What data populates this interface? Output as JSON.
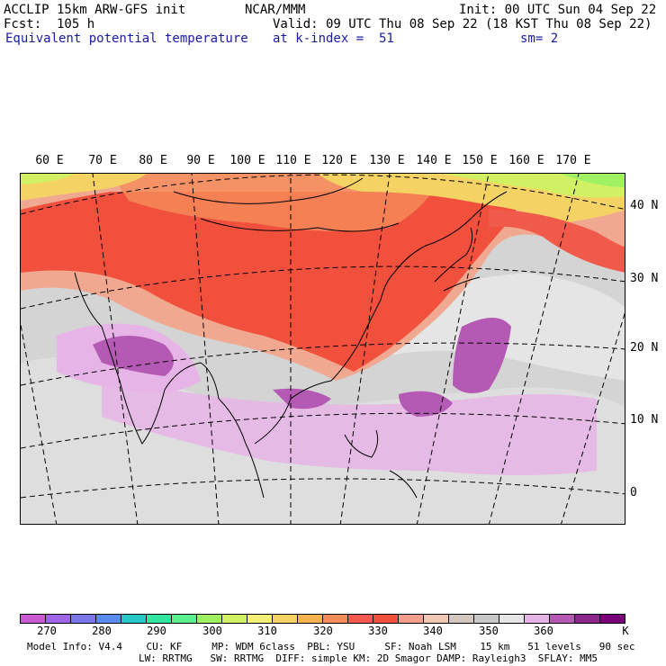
{
  "header": {
    "model_line": "ACCLIP 15km ARW-GFS init",
    "center": "NCAR/MMM",
    "init": "Init: 00 UTC Sun 04 Sep 22",
    "forecast": "Fcst:  105 h",
    "valid": "Valid: 09 UTC Thu 08 Sep 22 (18 KST Thu 08 Sep 22)",
    "field": "Equivalent potential temperature",
    "level": "at k-index =  51",
    "smoothing": "sm= 2"
  },
  "map": {
    "lon_labels": [
      "60 E",
      "70 E",
      "80 E",
      "90 E",
      "100 E",
      "110 E",
      "120 E",
      "130 E",
      "140 E",
      "150 E",
      "160 E",
      "170 E"
    ],
    "lat_labels": [
      "40 N",
      "30 N",
      "20 N",
      "10 N",
      "0"
    ]
  },
  "colorbar": {
    "colors": [
      "#c85ad2",
      "#a064e6",
      "#7a78e8",
      "#5a8cf0",
      "#28c8c8",
      "#32e6a0",
      "#5af08c",
      "#a0f064",
      "#d2f064",
      "#f5f078",
      "#f5d264",
      "#f5b450",
      "#f58c5a",
      "#f55a50",
      "#f0503c",
      "#f5a08c",
      "#f0c8b4",
      "#d2c8c0",
      "#c8c8c8",
      "#e6e6e6",
      "#e6b4e6",
      "#b45ab4",
      "#8c288c",
      "#780078"
    ],
    "tick_labels": [
      "270",
      "280",
      "290",
      "300",
      "310",
      "320",
      "330",
      "340",
      "350",
      "360"
    ],
    "unit": "K"
  },
  "footer": {
    "line1": "Model Info: V4.4    CU: KF     MP: WDM 6class  PBL: YSU     SF: Noah LSM    15 km   51 levels   90 sec",
    "line2": "LW: RRTMG   SW: RRTMG  DIFF: simple KM: 2D Smagor DAMP: Rayleigh3  SFLAY: MM5"
  }
}
